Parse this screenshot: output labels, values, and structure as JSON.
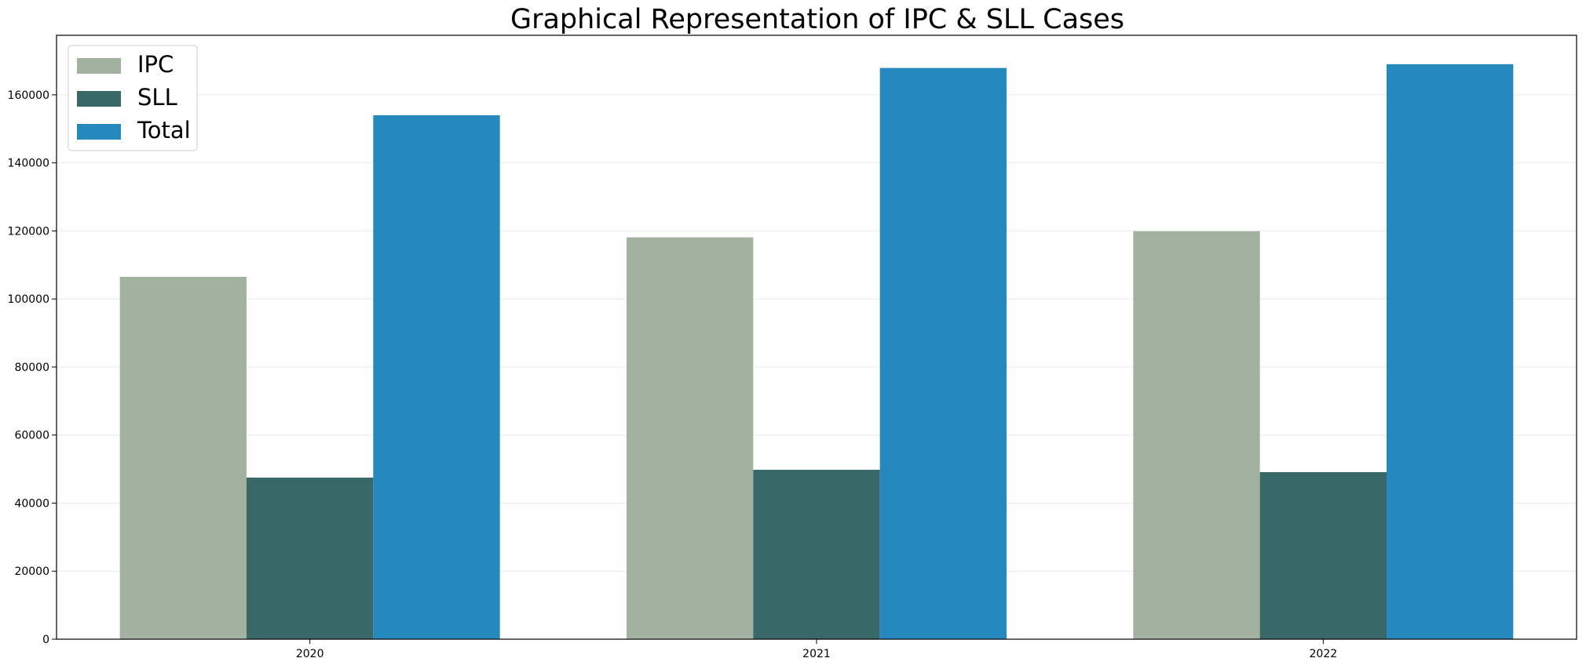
{
  "chart_data": {
    "type": "bar",
    "title": "Graphical Representation of IPC & SLL Cases",
    "xlabel": "",
    "ylabel": "",
    "categories": [
      "2020",
      "2021",
      "2022"
    ],
    "series": [
      {
        "name": "IPC",
        "color": "#a3b2a0",
        "values": [
          106500,
          118100,
          119900
        ]
      },
      {
        "name": "SLL",
        "color": "#386868",
        "values": [
          47500,
          49800,
          49100
        ]
      },
      {
        "name": "Total",
        "color": "#2589bd",
        "values": [
          154000,
          167900,
          169000
        ]
      }
    ],
    "ylim": [
      0,
      177500
    ],
    "yticks": [
      0,
      20000,
      40000,
      60000,
      80000,
      100000,
      120000,
      140000,
      160000
    ],
    "ytick_labels": [
      "0",
      "20000",
      "40000",
      "60000",
      "80000",
      "100000",
      "120000",
      "140000",
      "160000"
    ],
    "grid": "horizontal",
    "legend_position": "top-left"
  }
}
